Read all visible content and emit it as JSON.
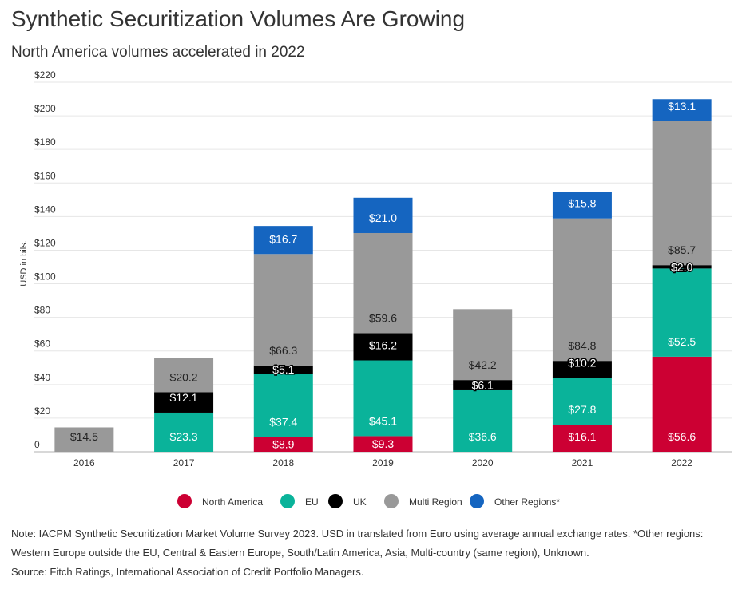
{
  "title": "Synthetic Securitization Volumes Are Growing",
  "subtitle": "North America volumes accelerated in 2022",
  "note": "Note: IACPM Synthetic Securitization Market Volume Survey 2023. USD in translated from Euro using average annual exchange rates. *Other regions: Western Europe outside the EU, Central & Eastern Europe, South/Latin America, Asia, Multi-country (same region), Unknown.",
  "source": "Source: Fitch Ratings, International Association of Credit Portfolio Managers.",
  "chart_data": {
    "type": "bar",
    "stacked": true,
    "ylabel": "USD in bils.",
    "ylim": [
      0,
      220
    ],
    "yticks": [
      0,
      20,
      40,
      60,
      80,
      100,
      120,
      140,
      160,
      180,
      200,
      220
    ],
    "ytick_labels": [
      "0",
      "$20",
      "$40",
      "$60",
      "$80",
      "$100",
      "$120",
      "$140",
      "$160",
      "$180",
      "$200",
      "$220"
    ],
    "grid": true,
    "legend": "bottom",
    "categories": [
      "2016",
      "2017",
      "2018",
      "2019",
      "2020",
      "2021",
      "2022"
    ],
    "series": [
      {
        "name": "North America",
        "color": "#cc0033",
        "values": [
          null,
          null,
          8.9,
          9.3,
          null,
          16.1,
          56.6
        ],
        "labels": [
          "",
          "",
          "$8.9",
          "$9.3",
          "",
          "$16.1",
          "$56.6"
        ]
      },
      {
        "name": "EU",
        "color": "#0ab39a",
        "values": [
          null,
          23.3,
          37.4,
          45.1,
          36.6,
          27.8,
          52.5
        ],
        "labels": [
          "",
          "$23.3",
          "$37.4",
          "$45.1",
          "$36.6",
          "$27.8",
          "$52.5"
        ]
      },
      {
        "name": "UK",
        "color": "#000000",
        "values": [
          null,
          12.1,
          5.1,
          16.2,
          6.1,
          10.2,
          2.0
        ],
        "labels": [
          "",
          "$12.1",
          "$5.1",
          "$16.2",
          "$6.1",
          "$10.2",
          "$2.0"
        ]
      },
      {
        "name": "Multi Region",
        "color": "#999999",
        "values": [
          14.5,
          20.2,
          66.3,
          59.6,
          42.2,
          84.8,
          85.7
        ],
        "labels": [
          "$14.5",
          "$20.2",
          "$66.3",
          "$59.6",
          "$42.2",
          "$84.8",
          "$85.7"
        ]
      },
      {
        "name": "Other Regions*",
        "color": "#1565c0",
        "values": [
          null,
          null,
          16.7,
          21.0,
          null,
          15.8,
          13.1
        ],
        "labels": [
          "",
          "",
          "$16.7",
          "$21.0",
          "",
          "$15.8",
          "$13.1"
        ]
      }
    ]
  }
}
